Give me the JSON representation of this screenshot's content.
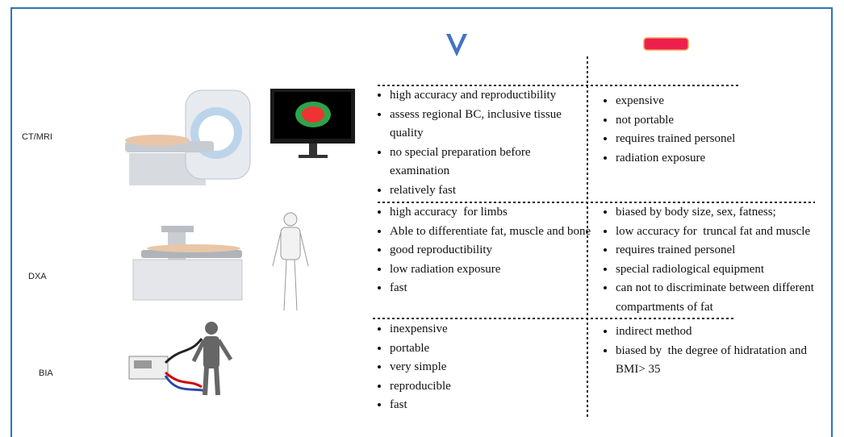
{
  "rows": [
    {
      "label": "CT/MRI",
      "pros": [
        "high accuracy and reproductibility",
        "assess regional BC, inclusive tissue quality",
        "no special preparation before examination",
        "relatively fast"
      ],
      "cons": [
        "expensive",
        "not portable",
        "requires trained personel",
        "radiation exposure"
      ]
    },
    {
      "label": "DXA",
      "pros": [
        "high accuracy  for limbs",
        "Able to differentiate fat, muscle and bone",
        "good reproductibility",
        "low radiation exposure",
        "fast"
      ],
      "cons": [
        "biased by body size, sex, fatness;",
        "low accuracy for  truncal fat and muscle",
        "requires trained personel",
        "special radiological equipment",
        "can not to discriminate between different compartments of fat"
      ]
    },
    {
      "label": "BIA",
      "pros": [
        "inexpensive",
        "portable",
        "very simple",
        "reproducible",
        "fast"
      ],
      "cons": [
        "indirect method",
        "biased by  the degree of hidratation and  BMI> 35"
      ]
    }
  ]
}
